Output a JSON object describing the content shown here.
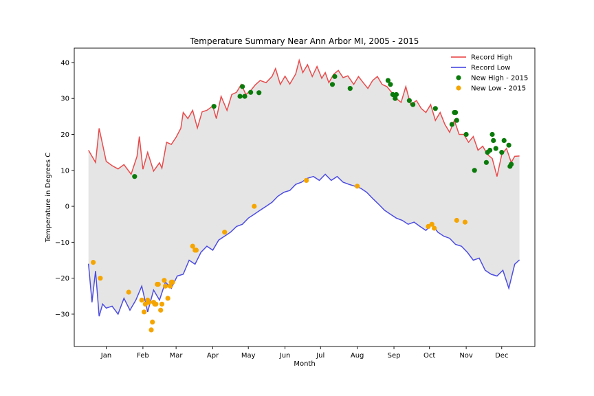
{
  "chart_data": {
    "type": "line",
    "title": "Temperature Summary Near Ann Arbor MI, 2005 - 2015",
    "xlabel": "Month",
    "ylabel": "Temperature in Degrees C",
    "xlim": [
      -12,
      377
    ],
    "ylim": [
      -39,
      44
    ],
    "x_ticks": [
      {
        "day": 15,
        "label": "Jan"
      },
      {
        "day": 46,
        "label": "Feb"
      },
      {
        "day": 74,
        "label": "Mar"
      },
      {
        "day": 105,
        "label": "Apr"
      },
      {
        "day": 135,
        "label": "May"
      },
      {
        "day": 166,
        "label": "Jun"
      },
      {
        "day": 196,
        "label": "Jul"
      },
      {
        "day": 227,
        "label": "Aug"
      },
      {
        "day": 258,
        "label": "Sep"
      },
      {
        "day": 288,
        "label": "Oct"
      },
      {
        "day": 319,
        "label": "Nov"
      },
      {
        "day": 349,
        "label": "Dec"
      }
    ],
    "y_ticks": [
      -30,
      -20,
      -10,
      0,
      10,
      20,
      30,
      40
    ],
    "grid": false,
    "legend_position": "top-right",
    "fill_between": {
      "color": "#e5e5e5"
    },
    "series": [
      {
        "name": "Record High",
        "kind": "line",
        "color": "#e8393a",
        "x": [
          0,
          6,
          9,
          15,
          20,
          25,
          30,
          36,
          41,
          43,
          46,
          50,
          55,
          60,
          62,
          66,
          70,
          74,
          78,
          80,
          84,
          88,
          92,
          96,
          100,
          105,
          108,
          112,
          117,
          121,
          125,
          129,
          133,
          137,
          141,
          145,
          150,
          155,
          158,
          162,
          166,
          170,
          175,
          178,
          181,
          185,
          189,
          193,
          197,
          200,
          203,
          207,
          211,
          215,
          219,
          224,
          228,
          232,
          236,
          240,
          244,
          248,
          252,
          256,
          260,
          264,
          268,
          272,
          277,
          281,
          285,
          289,
          293,
          297,
          301,
          305,
          309,
          313,
          317,
          321,
          325,
          329,
          333,
          337,
          341,
          345,
          349,
          353,
          357,
          360,
          364
        ],
        "y": [
          15.6,
          12.2,
          21.7,
          12.5,
          11.3,
          10.4,
          11.6,
          8.9,
          13.9,
          19.4,
          10.3,
          15.0,
          9.8,
          12.1,
          10.6,
          17.8,
          17.2,
          19.2,
          21.7,
          26.1,
          24.4,
          26.7,
          21.8,
          26.3,
          26.7,
          27.9,
          24.4,
          30.6,
          26.7,
          31.1,
          31.7,
          33.9,
          31.1,
          32.2,
          33.8,
          35.0,
          34.4,
          36.1,
          38.3,
          33.9,
          36.2,
          34.0,
          36.8,
          40.6,
          37.2,
          39.4,
          36.1,
          38.9,
          35.6,
          37.2,
          34.4,
          36.7,
          37.8,
          35.8,
          36.3,
          33.9,
          36.1,
          34.4,
          32.8,
          35.0,
          36.1,
          33.9,
          33.3,
          31.7,
          30.0,
          28.9,
          33.3,
          28.3,
          29.4,
          27.2,
          26.1,
          28.3,
          23.9,
          26.1,
          22.8,
          20.6,
          23.9,
          20.0,
          20.0,
          17.8,
          19.4,
          15.6,
          16.7,
          14.4,
          13.3,
          8.3,
          14.4,
          16.1,
          12.2,
          13.9,
          14.0
        ]
      },
      {
        "name": "Record Low",
        "kind": "line",
        "color": "#3a3ae0",
        "x": [
          0,
          3,
          6,
          9,
          12,
          15,
          20,
          25,
          30,
          35,
          40,
          45,
          50,
          55,
          60,
          65,
          70,
          75,
          80,
          85,
          90,
          95,
          100,
          105,
          110,
          115,
          120,
          125,
          130,
          135,
          140,
          145,
          150,
          155,
          160,
          165,
          170,
          175,
          180,
          185,
          190,
          195,
          200,
          205,
          210,
          215,
          220,
          225,
          230,
          235,
          240,
          245,
          250,
          255,
          260,
          265,
          270,
          275,
          280,
          285,
          290,
          295,
          300,
          305,
          310,
          315,
          320,
          325,
          330,
          335,
          340,
          345,
          350,
          355,
          360,
          364
        ],
        "y": [
          -16.0,
          -26.7,
          -18.0,
          -30.6,
          -27.2,
          -28.3,
          -27.8,
          -30.0,
          -25.6,
          -28.9,
          -26.1,
          -22.2,
          -29.4,
          -23.3,
          -26.1,
          -21.1,
          -22.8,
          -19.4,
          -18.9,
          -15.0,
          -16.1,
          -12.8,
          -11.1,
          -12.2,
          -9.4,
          -8.3,
          -7.2,
          -5.6,
          -5.0,
          -3.3,
          -2.2,
          -1.1,
          0.0,
          1.1,
          2.8,
          3.9,
          4.4,
          6.1,
          6.7,
          7.8,
          8.3,
          7.2,
          8.9,
          7.2,
          8.3,
          6.7,
          6.1,
          5.6,
          5.0,
          3.9,
          2.2,
          0.6,
          -1.1,
          -2.2,
          -3.3,
          -3.9,
          -5.0,
          -4.4,
          -5.6,
          -6.7,
          -5.0,
          -7.2,
          -8.3,
          -8.9,
          -10.6,
          -11.1,
          -12.8,
          -15.0,
          -14.4,
          -17.8,
          -18.9,
          -19.4,
          -17.8,
          -22.8,
          -16.1,
          -14.9
        ]
      },
      {
        "name": "New High - 2015",
        "kind": "scatter",
        "color": "#0a7a0a",
        "x": [
          39,
          106,
          128,
          130,
          132,
          137,
          144,
          206,
          208,
          221,
          253,
          255,
          257,
          259,
          260,
          271,
          274,
          293,
          307,
          309,
          310,
          311,
          319,
          326,
          336,
          337,
          339,
          341,
          342,
          344,
          349,
          351,
          355,
          356,
          357
        ],
        "y": [
          8.3,
          27.8,
          30.6,
          33.3,
          30.6,
          31.7,
          31.6,
          33.9,
          36.1,
          32.8,
          35.0,
          33.9,
          31.1,
          30.0,
          31.1,
          29.4,
          28.3,
          27.2,
          22.8,
          26.1,
          26.1,
          23.9,
          20.0,
          10.0,
          12.2,
          15.0,
          15.6,
          20.0,
          18.3,
          16.1,
          15.0,
          18.3,
          17.0,
          11.1,
          11.7
        ]
      },
      {
        "name": "New Low - 2015",
        "kind": "scatter",
        "color": "#f5a500",
        "x": [
          4,
          10,
          34,
          45,
          47,
          48,
          50,
          51,
          53,
          54,
          55,
          56,
          57,
          58,
          59,
          61,
          62,
          64,
          65,
          67,
          69,
          70,
          71,
          88,
          90,
          91,
          115,
          140,
          184,
          227,
          287,
          290,
          292,
          311,
          318
        ],
        "y": [
          -15.6,
          -20.0,
          -23.9,
          -26.1,
          -29.4,
          -27.2,
          -26.1,
          -26.7,
          -34.4,
          -32.2,
          -26.7,
          -27.2,
          -27.2,
          -21.7,
          -21.7,
          -28.9,
          -27.2,
          -20.6,
          -22.2,
          -25.6,
          -22.2,
          -21.1,
          -21.1,
          -11.1,
          -12.2,
          -12.2,
          -7.2,
          0.0,
          7.2,
          5.6,
          -5.6,
          -5.0,
          -6.1,
          -3.9,
          -4.4
        ]
      }
    ]
  }
}
